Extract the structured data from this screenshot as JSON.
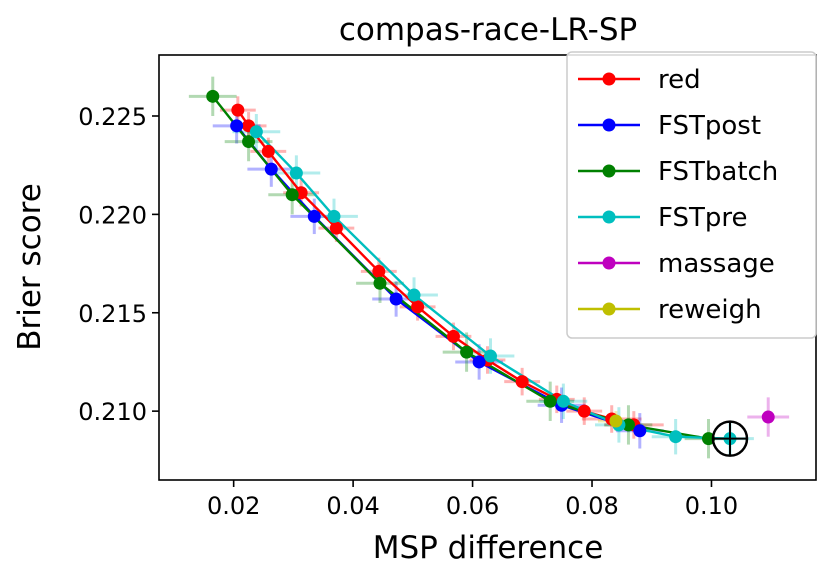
{
  "chart_data": {
    "type": "line",
    "title": "compas-race-LR-SP",
    "xlabel": "MSP difference",
    "ylabel": "Brier score",
    "xlim": [
      0.0075,
      0.1175
    ],
    "ylim": [
      0.2065,
      0.2281
    ],
    "xticks": [
      0.02,
      0.04,
      0.06,
      0.08,
      0.1
    ],
    "xtick_labels": [
      "0.02",
      "0.04",
      "0.06",
      "0.08",
      "0.10"
    ],
    "yticks": [
      0.21,
      0.215,
      0.22,
      0.225
    ],
    "ytick_labels": [
      "0.210",
      "0.215",
      "0.220",
      "0.225"
    ],
    "grid": false,
    "legend_position": "top-right",
    "highlight_marker": {
      "x": 0.1031,
      "y": 0.2086,
      "shape": "circle-crosshair"
    },
    "series": [
      {
        "name": "red",
        "color": "#ff0000",
        "x": [
          0.0207,
          0.0225,
          0.0258,
          0.0313,
          0.0372,
          0.0443,
          0.0508,
          0.0568,
          0.0625,
          0.0683,
          0.0741,
          0.0787,
          0.0833,
          0.087
        ],
        "y": [
          0.2253,
          0.2245,
          0.2232,
          0.2211,
          0.2193,
          0.2171,
          0.2153,
          0.2138,
          0.2126,
          0.2115,
          0.2106,
          0.21,
          0.2096,
          0.2093
        ],
        "xerr": [
          0.003,
          0.003,
          0.003,
          0.003,
          0.003,
          0.003,
          0.003,
          0.003,
          0.003,
          0.003,
          0.003,
          0.003,
          0.005,
          0.005
        ],
        "yerr": [
          0.0007,
          0.0007,
          0.0007,
          0.0007,
          0.0007,
          0.0007,
          0.0007,
          0.0007,
          0.0007,
          0.0007,
          0.0007,
          0.0007,
          0.0007,
          0.0007
        ]
      },
      {
        "name": "FSTpost",
        "color": "#0000ff",
        "x": [
          0.0205,
          0.0263,
          0.0335,
          0.0472,
          0.0611,
          0.0749,
          0.088
        ],
        "y": [
          0.2245,
          0.2223,
          0.2199,
          0.2157,
          0.2125,
          0.2103,
          0.209
        ],
        "xerr": [
          0.004,
          0.004,
          0.004,
          0.004,
          0.004,
          0.004,
          0.004
        ],
        "yerr": [
          0.0009,
          0.0009,
          0.0009,
          0.0009,
          0.0009,
          0.0009,
          0.0009
        ]
      },
      {
        "name": "FSTbatch",
        "color": "#008000",
        "x": [
          0.0165,
          0.0225,
          0.0298,
          0.0445,
          0.059,
          0.073,
          0.0861,
          0.0995
        ],
        "y": [
          0.226,
          0.2237,
          0.221,
          0.2165,
          0.213,
          0.2105,
          0.2093,
          0.2086
        ],
        "xerr": [
          0.004,
          0.004,
          0.004,
          0.004,
          0.004,
          0.004,
          0.004,
          0.004
        ],
        "yerr": [
          0.001,
          0.001,
          0.001,
          0.001,
          0.001,
          0.001,
          0.001,
          0.001
        ]
      },
      {
        "name": "FSTpre",
        "color": "#00bfbf",
        "x": [
          0.0238,
          0.0305,
          0.0368,
          0.0502,
          0.063,
          0.0752,
          0.0845,
          0.094,
          0.1031
        ],
        "y": [
          0.2242,
          0.2221,
          0.2199,
          0.2159,
          0.2128,
          0.2105,
          0.2093,
          0.2087,
          0.2086
        ],
        "xerr": [
          0.004,
          0.004,
          0.004,
          0.004,
          0.004,
          0.004,
          0.004,
          0.004,
          0.004
        ],
        "yerr": [
          0.0009,
          0.0009,
          0.0009,
          0.0009,
          0.0009,
          0.0009,
          0.0009,
          0.0009,
          0.0009
        ]
      },
      {
        "name": "massage",
        "color": "#bf00bf",
        "x": [
          0.1095
        ],
        "y": [
          0.2097
        ],
        "xerr": [
          0.0035
        ],
        "yerr": [
          0.001
        ]
      },
      {
        "name": "reweigh",
        "color": "#bfbf00",
        "x": [
          0.084
        ],
        "y": [
          0.2095
        ],
        "xerr": [
          0.003
        ],
        "yerr": [
          0.0005
        ]
      }
    ]
  }
}
